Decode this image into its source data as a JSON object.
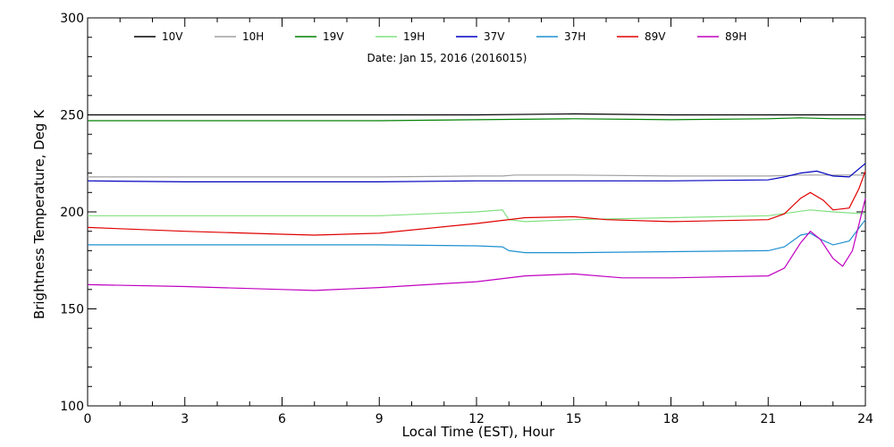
{
  "chart_data": {
    "type": "line",
    "title": "Date: Jan 15, 2016 (2016015)",
    "xlabel": "Local Time (EST), Hour",
    "ylabel": "Brightness Temperature, Deg K",
    "xlim": [
      0,
      24
    ],
    "ylim": [
      100,
      300
    ],
    "xticks": [
      0,
      3,
      6,
      9,
      12,
      15,
      18,
      21,
      24
    ],
    "yticks": [
      100,
      150,
      200,
      250,
      300
    ],
    "grid": false,
    "legend": "top, single row",
    "series": [
      {
        "name": "10V",
        "color": "#000000",
        "x": [
          0,
          3,
          6,
          9,
          12,
          15,
          18,
          21,
          22,
          23,
          24
        ],
        "y": [
          250,
          250,
          250,
          250,
          250,
          250.5,
          250,
          250,
          250,
          250,
          250
        ]
      },
      {
        "name": "10H",
        "color": "#a0a0a0",
        "x": [
          0,
          3,
          6,
          9,
          12,
          12.8,
          13.2,
          15,
          18,
          21,
          22,
          23,
          24
        ],
        "y": [
          218,
          218,
          218,
          218,
          218.5,
          218.5,
          219,
          219,
          218.5,
          218.5,
          219,
          219,
          219
        ]
      },
      {
        "name": "19V",
        "color": "#008000",
        "x": [
          0,
          3,
          6,
          9,
          12,
          15,
          18,
          21,
          22,
          23,
          24
        ],
        "y": [
          247,
          247,
          247,
          247,
          247.5,
          248,
          247.5,
          248,
          248.5,
          248,
          248
        ]
      },
      {
        "name": "19H",
        "color": "#80e080",
        "x": [
          0,
          3,
          6,
          9,
          12,
          12.8,
          13.0,
          13.5,
          15,
          18,
          21,
          22.3,
          23,
          24
        ],
        "y": [
          198,
          198,
          198,
          198,
          200,
          201,
          196,
          195,
          196,
          197,
          198,
          201,
          200,
          199
        ]
      },
      {
        "name": "37V",
        "color": "#0000c0",
        "x": [
          0,
          3,
          6,
          9,
          12,
          13,
          15,
          18,
          21,
          21.5,
          22,
          22.5,
          23,
          23.5,
          24
        ],
        "y": [
          216,
          215.5,
          215.5,
          215.5,
          216,
          216,
          216,
          216,
          216.5,
          218,
          220,
          221,
          218.5,
          218,
          225
        ]
      },
      {
        "name": "37H",
        "color": "#1e90d0",
        "x": [
          0,
          3,
          6,
          9,
          12,
          12.8,
          13,
          13.5,
          15,
          18,
          21,
          21.5,
          22,
          22.3,
          22.6,
          23,
          23.5,
          24
        ],
        "y": [
          183,
          183,
          183,
          183,
          182.5,
          182,
          180,
          179,
          179,
          179.5,
          180,
          182,
          188,
          189,
          186,
          183,
          185,
          196
        ]
      },
      {
        "name": "89V",
        "color": "#e00000",
        "x": [
          0,
          3,
          6,
          7,
          9,
          12,
          13.5,
          15,
          16,
          18,
          21,
          21.5,
          22,
          22.3,
          22.7,
          23,
          23.5,
          23.8,
          24
        ],
        "y": [
          192,
          190,
          188.5,
          188,
          189,
          194,
          197,
          197.5,
          196,
          195,
          196,
          199,
          207,
          210,
          206,
          201,
          202,
          212,
          221
        ]
      },
      {
        "name": "89H",
        "color": "#c000c0",
        "x": [
          0,
          3,
          6,
          7,
          9,
          12,
          13.5,
          15,
          16.5,
          18,
          21,
          21.5,
          22,
          22.3,
          22.6,
          23,
          23.3,
          23.6,
          24
        ],
        "y": [
          162.5,
          161.5,
          160,
          159.5,
          161,
          164,
          167,
          168,
          166,
          166,
          167,
          171,
          184,
          190,
          186,
          176,
          172,
          180,
          207
        ]
      }
    ]
  }
}
